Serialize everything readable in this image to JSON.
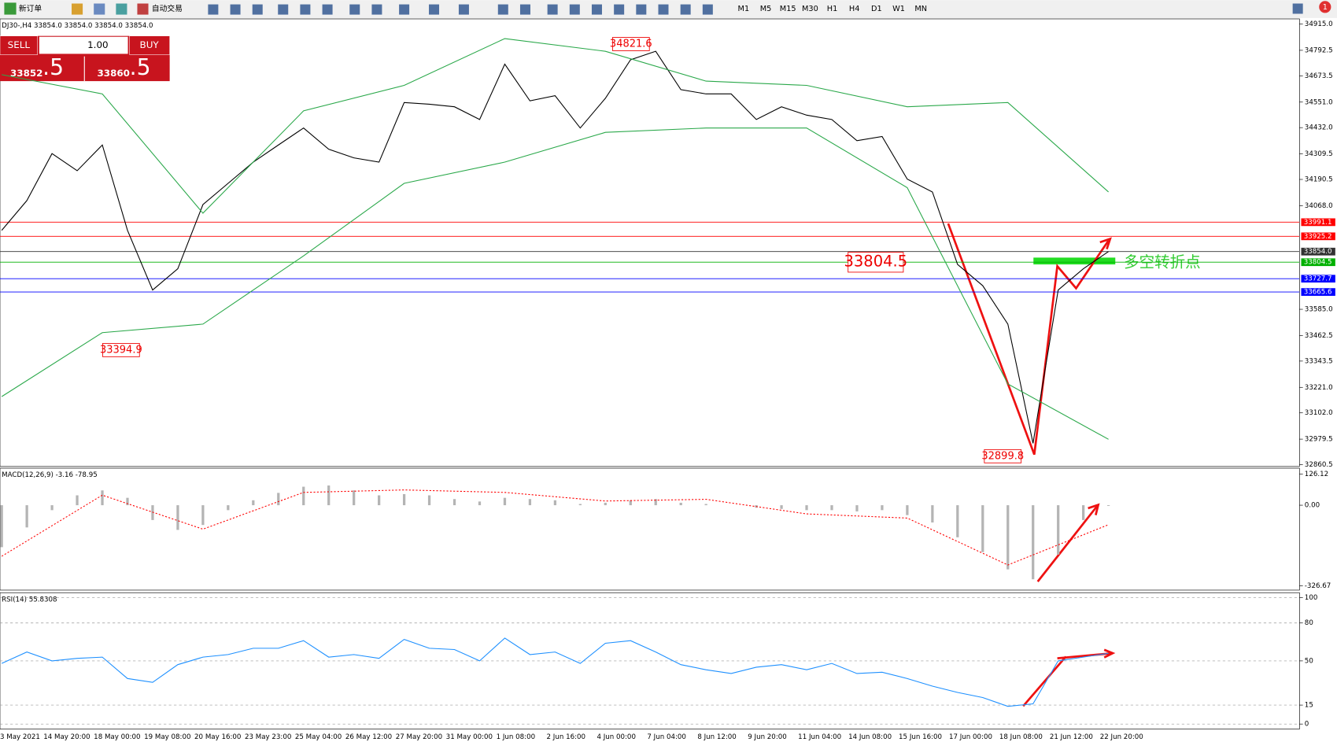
{
  "toolbar": {
    "new_order": "新订单",
    "auto_trading": "自动交易",
    "timeframes": [
      "M1",
      "M5",
      "M15",
      "M30",
      "H1",
      "H4",
      "D1",
      "W1",
      "MN"
    ],
    "notifications": "1"
  },
  "trade_panel": {
    "sell": "SELL",
    "lot": "1.00",
    "buy": "BUY",
    "bid": "33852",
    "bid_pips": ".5",
    "ask": "33860",
    "ask_pips": ".5"
  },
  "time_axis": [
    "3 May 2021",
    "14 May 20:00",
    "18 May 00:00",
    "19 May 08:00",
    "20 May 16:00",
    "23 May 23:00",
    "25 May 04:00",
    "26 May 12:00",
    "27 May 20:00",
    "31 May 00:00",
    "1 Jun 08:00",
    "2 Jun 16:00",
    "4 Jun 00:00",
    "7 Jun 04:00",
    "8 Jun 12:00",
    "9 Jun 20:00",
    "11 Jun 04:00",
    "14 Jun 08:00",
    "15 Jun 16:00",
    "17 Jun 00:00",
    "18 Jun 08:00",
    "21 Jun 12:00",
    "22 Jun 20:00"
  ],
  "chart_data": [
    {
      "type": "line",
      "title": "DJ30-,H4  33854.0 33854.0 33854.0 33854.0",
      "ylim": [
        32852,
        34939
      ],
      "yticks": [
        {
          "value": 34915,
          "label": "34915.0"
        },
        34792.5,
        34673.5,
        {
          "value": 34551,
          "label": "34551.0"
        },
        {
          "value": 34432,
          "label": "34432.0"
        },
        34309.5,
        34190.5,
        {
          "value": 34068,
          "label": "34068.0"
        },
        {
          "value": 33585,
          "label": "33585.0"
        },
        33462.5,
        33343.5,
        {
          "value": 33221,
          "label": "33221.0"
        },
        {
          "value": 33102,
          "label": "33102.0"
        },
        32979.5,
        32860.5
      ],
      "series": [
        {
          "color": "#000000",
          "values": [
            33953,
            34092,
            34311,
            34231,
            34351,
            33953,
            33675,
            33774,
            34073,
            34172,
            34271,
            34351,
            34430,
            34331,
            34291,
            34271,
            34549,
            34541,
            34529,
            34470,
            34728,
            34557,
            34581,
            34430,
            34569,
            34748,
            34788,
            34609,
            34589,
            34589,
            34470,
            34529,
            34490,
            34470,
            34371,
            34391,
            34192,
            34132,
            33794,
            33695,
            33516,
            32960,
            33675,
            33774,
            33854
          ]
        },
        {
          "color": "#2aa84a",
          "x": [
            0,
            4,
            8,
            12,
            16,
            20,
            24,
            28,
            32,
            36,
            40,
            44
          ],
          "values": [
            34679,
            34589,
            34033,
            34510,
            34629,
            34847,
            34788,
            34649,
            34629,
            34529,
            34549,
            34132
          ]
        },
        {
          "color": "#2aa84a",
          "x": [
            0,
            4,
            8,
            12,
            16,
            20,
            24,
            28,
            32,
            36,
            40,
            44
          ],
          "values": [
            33178,
            33476,
            33516,
            33834,
            34172,
            34271,
            34410,
            34430,
            34430,
            34152,
            33237,
            32979
          ]
        }
      ],
      "levels": [
        {
          "price": 33991.1,
          "color": "#ff0000"
        },
        {
          "price": 33925.2,
          "color": "#ff0000"
        },
        {
          "price": {
            "value": 33854,
            "label": "33854.0"
          },
          "color": "#333333"
        },
        {
          "price": 33804.5,
          "color": "#00b000"
        },
        {
          "price": 33727.7,
          "color": "#0000ff"
        },
        {
          "price": 33665.6,
          "color": "#0000ff"
        }
      ],
      "annotations": [
        34821.6,
        33394.9,
        32899.8,
        33804.5
      ],
      "annotation_text": "多空转折点"
    },
    {
      "type": "bar",
      "title": "MACD(12,26,9) -3.16 -78.95",
      "ylim": [
        -344,
        150
      ],
      "yticks": [
        126.12,
        {
          "value": 0,
          "label": "0.00"
        },
        -326.67
      ],
      "series": [
        {
          "kind": "bar",
          "color": "#b4b4b4",
          "values": [
            -170,
            -90,
            -20,
            40,
            60,
            30,
            -60,
            -100,
            -80,
            -20,
            20,
            50,
            75,
            80,
            60,
            40,
            45,
            40,
            25,
            15,
            30,
            25,
            20,
            5,
            10,
            20,
            25,
            10,
            5,
            0,
            -10,
            -15,
            -20,
            -20,
            -25,
            -20,
            -40,
            -70,
            -130,
            -190,
            -260,
            -300,
            -200,
            -60,
            -3
          ]
        },
        {
          "kind": "line",
          "color": "#ff0000",
          "dashed": true,
          "x": [
            0,
            4,
            8,
            12,
            16,
            20,
            24,
            28,
            32,
            36,
            40,
            44
          ],
          "values": [
            -207,
            41,
            -97,
            52,
            62,
            52,
            17,
            24,
            -35,
            -52,
            -242,
            -79
          ]
        }
      ]
    },
    {
      "type": "line",
      "title": "RSI(14) 55.8308",
      "ylim": [
        -4,
        104
      ],
      "yticks": [
        100,
        80,
        50,
        15,
        0
      ],
      "grid": true,
      "series": [
        {
          "color": "#1e90ff",
          "values": [
            48,
            57,
            50,
            52,
            53,
            36,
            33,
            47,
            53,
            55,
            60,
            60,
            66,
            53,
            55,
            52,
            67,
            60,
            59,
            50,
            68,
            55,
            57,
            48,
            64,
            66,
            57,
            47,
            43,
            40,
            45,
            47,
            43,
            48,
            40,
            41,
            36,
            30,
            25,
            21,
            14,
            16,
            50,
            53,
            56
          ]
        }
      ]
    }
  ]
}
